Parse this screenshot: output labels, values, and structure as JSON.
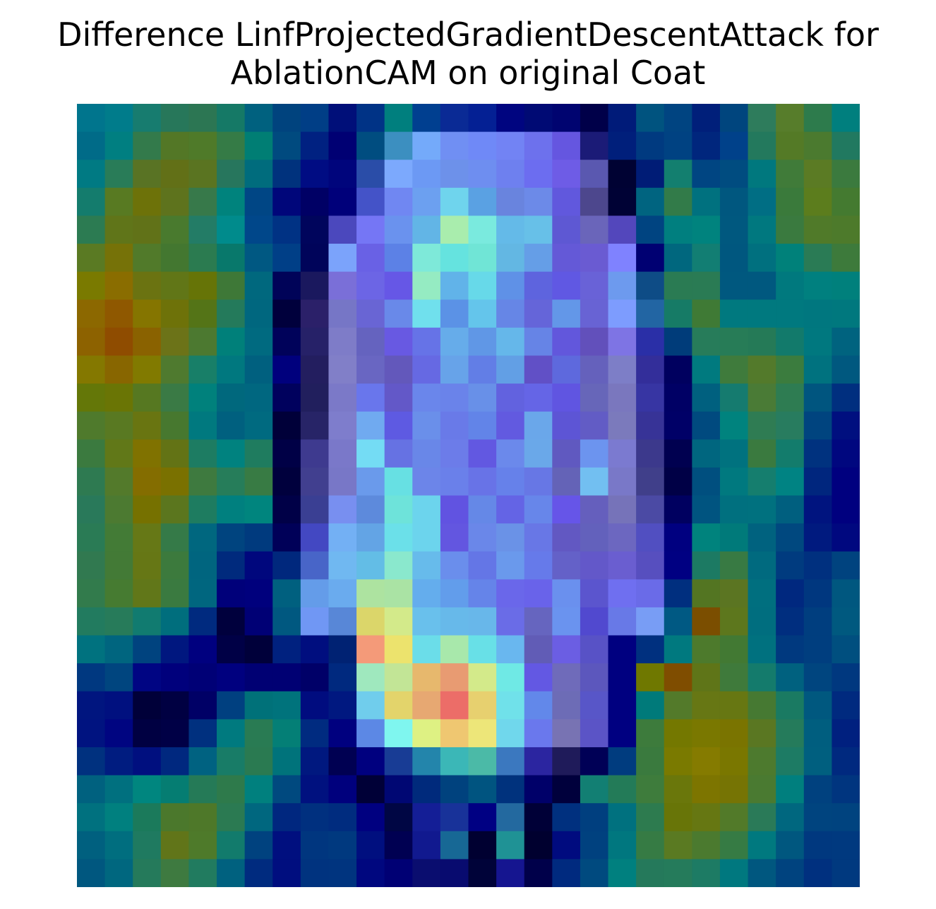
{
  "chart_data": {
    "type": "heatmap",
    "title": "Difference LinfProjectedGradientDescentAttack for",
    "subtitle": "AblationCAM on original Coat",
    "rows": 28,
    "cols": 28,
    "axes_visible": false,
    "grid": false,
    "colorbar": false,
    "colors": [
      [
        "#00758d",
        "#007c8b",
        "#177c6f",
        "#27775a",
        "#2c7653",
        "#157966",
        "#00617f",
        "#00437e",
        "#003e86",
        "#000f79",
        "#003386",
        "#007f7e",
        "#003f90",
        "#0a2a95",
        "#042094",
        "#000580",
        "#000a74",
        "#000470",
        "#000049",
        "#001b79",
        "#00537f",
        "#004481",
        "#001f7a",
        "#00457e",
        "#2e7c5c",
        "#577d2b",
        "#2d7b4c",
        "#007f7e"
      ],
      [
        "#006b88",
        "#007f81",
        "#337a4b",
        "#537726",
        "#4f7a29",
        "#357b46",
        "#007e74",
        "#004a7f",
        "#002181",
        "#000073",
        "#004d80",
        "#3c8fc0",
        "#74aafa",
        "#708ff3",
        "#6f89f7",
        "#7283f4",
        "#6d71ed",
        "#6556e0",
        "#1b1b77",
        "#001f7b",
        "#003a80",
        "#004282",
        "#00267d",
        "#00418a",
        "#23795d",
        "#547a26",
        "#4b7a2f",
        "#217960"
      ],
      [
        "#007a83",
        "#297c58",
        "#597324",
        "#627017",
        "#5a7421",
        "#27765d",
        "#006c7d",
        "#00327d",
        "#000c83",
        "#00057c",
        "#2a4da8",
        "#7ca9fd",
        "#6c99f4",
        "#6d91ea",
        "#6e8ef0",
        "#6e80ef",
        "#6c6df0",
        "#6e5ce6",
        "#5a58b0",
        "#000233",
        "#001c76",
        "#137f6f",
        "#004582",
        "#004c80",
        "#00787e",
        "#407b39",
        "#5b7b24",
        "#3b7a3e"
      ],
      [
        "#147c6d",
        "#587a22",
        "#6d7209",
        "#5e731d",
        "#37794a",
        "#00837d",
        "#004685",
        "#00067a",
        "#000065",
        "#00007a",
        "#4453c8",
        "#7087f2",
        "#6ca0f0",
        "#6fd4ed",
        "#5aa1e3",
        "#6984de",
        "#6c8ae8",
        "#6158dd",
        "#4d478d",
        "#000235",
        "#006480",
        "#327b49",
        "#00717f",
        "#00577f",
        "#006e84",
        "#3a7a3b",
        "#5c7d1d",
        "#447a30"
      ],
      [
        "#2c7b52",
        "#607519",
        "#617218",
        "#497a2e",
        "#237c66",
        "#008b8c",
        "#00478a",
        "#003284",
        "#00055c",
        "#4b48bd",
        "#7576f5",
        "#6a92ee",
        "#62b5e6",
        "#a9edad",
        "#7aeade",
        "#64bae8",
        "#67c0e8",
        "#5e58d3",
        "#6a65ba",
        "#5347bc",
        "#004481",
        "#007f7f",
        "#00837e",
        "#00587f",
        "#00787f",
        "#3a7a3f",
        "#507a29",
        "#4d7a2b"
      ],
      [
        "#5a7a23",
        "#767208",
        "#517a2a",
        "#437730",
        "#2b7b50",
        "#08786b",
        "#005882",
        "#003f87",
        "#00045a",
        "#7ba3fb",
        "#6961e5",
        "#5c81e6",
        "#7ee9d9",
        "#65e3df",
        "#70e5d6",
        "#63b7e3",
        "#659ee7",
        "#6459d7",
        "#6a5bd2",
        "#7f82ff",
        "#000072",
        "#00677e",
        "#127e73",
        "#00577f",
        "#00707f",
        "#00817a",
        "#2a7b55",
        "#3d7a3b"
      ],
      [
        "#7a7a00",
        "#8a6d00",
        "#6b7311",
        "#617617",
        "#667407",
        "#3e7837",
        "#00687e",
        "#000358",
        "#1a185e",
        "#7a6fd8",
        "#6c65e5",
        "#6657e6",
        "#95ebc2",
        "#61b3e9",
        "#67d9e9",
        "#5f91e7",
        "#5e64de",
        "#6058e3",
        "#6962d7",
        "#6d9aee",
        "#0e4c86",
        "#2a7b53",
        "#2a7b54",
        "#00587f",
        "#00587f",
        "#00797e",
        "#00807f",
        "#00807c"
      ],
      [
        "#8c6800",
        "#8f5800",
        "#857500",
        "#6e7209",
        "#547417",
        "#247a5b",
        "#00677f",
        "#00003c",
        "#2b2069",
        "#7676c6",
        "#6965d4",
        "#6989e9",
        "#70e0ed",
        "#5b92e6",
        "#64c5eb",
        "#6686e6",
        "#6565d9",
        "#6397e8",
        "#6863d4",
        "#7d9cfe",
        "#2265a3",
        "#167b66",
        "#3f7a35",
        "#00797f",
        "#00797f",
        "#00797f",
        "#00777f",
        "#00787e"
      ],
      [
        "#8d6200",
        "#8f4c00",
        "#8a6200",
        "#6c7318",
        "#4c7930",
        "#00807a",
        "#006a80",
        "#00025a",
        "#262168",
        "#7e7cc8",
        "#6563bf",
        "#6859e2",
        "#6673e7",
        "#66acea",
        "#6097e6",
        "#65b7ea",
        "#6684e6",
        "#6257dc",
        "#6250bb",
        "#7e74e4",
        "#2a2fa7",
        "#003c7a",
        "#277c5a",
        "#277c57",
        "#257a57",
        "#127a6b",
        "#00787f",
        "#00637f"
      ],
      [
        "#847800",
        "#886600",
        "#817a00",
        "#4f7a2f",
        "#187f68",
        "#00787f",
        "#00607f",
        "#00007d",
        "#231e5f",
        "#817fc8",
        "#6966c2",
        "#6358bb",
        "#6669e3",
        "#67a3e9",
        "#627ee6",
        "#629fe5",
        "#6150c6",
        "#5e69dd",
        "#6561bc",
        "#7d7ec7",
        "#332e9a",
        "#00005f",
        "#007a7f",
        "#3f7b3c",
        "#537a2b",
        "#3b7c3e",
        "#00727f",
        "#00587f"
      ],
      [
        "#647708",
        "#6a7505",
        "#567821",
        "#3a7a45",
        "#00817c",
        "#00687d",
        "#006780",
        "#00015d",
        "#211f5d",
        "#7b79c8",
        "#6976ec",
        "#6358c8",
        "#6a86eb",
        "#6a83ea",
        "#6890e8",
        "#6262df",
        "#6565e6",
        "#6055e1",
        "#6766b9",
        "#7a77be",
        "#3735a3",
        "#000065",
        "#00607f",
        "#157b6f",
        "#4a7b36",
        "#2e7c52",
        "#00557f",
        "#002f7f"
      ],
      [
        "#4f7a2c",
        "#597922",
        "#697511",
        "#47782f",
        "#00797f",
        "#00607f",
        "#006a80",
        "#000039",
        "#272467",
        "#7e7dcc",
        "#70aaf0",
        "#5e5ae2",
        "#6a8fea",
        "#697ae8",
        "#6284e8",
        "#625ae0",
        "#6aa7ea",
        "#5d55d5",
        "#625cc5",
        "#7b7abc",
        "#373397",
        "#000067",
        "#004a7f",
        "#00837e",
        "#2f7c53",
        "#287c5f",
        "#00447f",
        "#000f7f"
      ],
      [
        "#3b7a3f",
        "#617818",
        "#807200",
        "#637315",
        "#1d7c62",
        "#00827f",
        "#1f7c5f",
        "#000046",
        "#3e3a8f",
        "#7a78c9",
        "#74dcf4",
        "#6672e3",
        "#6987e8",
        "#6c7ce9",
        "#6258e1",
        "#6b89eb",
        "#6aa8e9",
        "#6059c0",
        "#6c94ef",
        "#7b7ad0",
        "#3c398c",
        "#000050",
        "#00667f",
        "#00727f",
        "#3a7a3f",
        "#137c6c",
        "#00327f",
        "#00077f"
      ],
      [
        "#2e7a51",
        "#537a2b",
        "#846d00",
        "#7a7100",
        "#3e7a3f",
        "#267d5a",
        "#387b44",
        "#00003d",
        "#413f8f",
        "#7877c7",
        "#6a9aeb",
        "#67e0e3",
        "#6c85e9",
        "#6a80ea",
        "#6873e7",
        "#6681ea",
        "#6777e5",
        "#6463b7",
        "#72bff1",
        "#7978c8",
        "#403f8a",
        "#000046",
        "#004f7f",
        "#00797f",
        "#157e6e",
        "#008383",
        "#00267e",
        "#00007f"
      ],
      [
        "#29795a",
        "#4c7a31",
        "#767100",
        "#5b761e",
        "#1e7c60",
        "#00807f",
        "#00857e",
        "#000047",
        "#3a3f93",
        "#788ff0",
        "#5d8adc",
        "#6ee3da",
        "#6cd4ed",
        "#6153e1",
        "#6588e7",
        "#6464e5",
        "#6786ea",
        "#6655e8",
        "#655fbd",
        "#7673b9",
        "#4b4aa4",
        "#000060",
        "#005480",
        "#00707f",
        "#00717f",
        "#005f7f",
        "#00147f",
        "#00007f"
      ],
      [
        "#2a7b55",
        "#437b36",
        "#667816",
        "#357a48",
        "#00677f",
        "#00447f",
        "#003a7e",
        "#000058",
        "#4348c2",
        "#73b0f4",
        "#63a4e5",
        "#6be0e9",
        "#6cd4ed",
        "#6356e0",
        "#6a87e9",
        "#6a92e7",
        "#6877e6",
        "#6258c2",
        "#6361bc",
        "#6c67c0",
        "#514fc1",
        "#000080",
        "#00837d",
        "#007a7a",
        "#00627f",
        "#00487f",
        "#001a7f",
        "#00087f"
      ],
      [
        "#317950",
        "#437a36",
        "#667715",
        "#3c7a3d",
        "#00657f",
        "#002a7d",
        "#00077d",
        "#00287d",
        "#4865c8",
        "#70b8f1",
        "#63bde6",
        "#8ae8cd",
        "#67bbeb",
        "#6a8eec",
        "#6476e6",
        "#6a99ec",
        "#667aea",
        "#6461c8",
        "#6358c9",
        "#6a5ed0",
        "#574fbf",
        "#000082",
        "#1c7a63",
        "#387a43",
        "#006a7f",
        "#003b7f",
        "#00307f",
        "#00437f"
      ],
      [
        "#327b4c",
        "#467b31",
        "#617719",
        "#3a7a40",
        "#00667f",
        "#00007a",
        "#00007d",
        "#00607f",
        "#649ce9",
        "#6aabee",
        "#ade3a0",
        "#aae3a4",
        "#64aded",
        "#629deb",
        "#6584e9",
        "#6a67ea",
        "#6963ea",
        "#6a90ee",
        "#5b55ce",
        "#6f6ff0",
        "#6a6be8",
        "#002f7f",
        "#537522",
        "#5b7522",
        "#006f7f",
        "#00287f",
        "#00377f",
        "#00577f"
      ],
      [
        "#227b5f",
        "#277b5a",
        "#117b70",
        "#006e7d",
        "#002a7f",
        "#00003d",
        "#000075",
        "#005880",
        "#7097f4",
        "#5887d7",
        "#dbd66a",
        "#d3ea8a",
        "#69c0ec",
        "#67b9ea",
        "#68b7ea",
        "#6a6ce7",
        "#6665bf",
        "#6a93ef",
        "#5149cf",
        "#6879e7",
        "#789df5",
        "#005983",
        "#7b4e00",
        "#5d771d",
        "#006e7f",
        "#002e7f",
        "#003e7f",
        "#00597f"
      ],
      [
        "#00727f",
        "#00657f",
        "#00437f",
        "#00177f",
        "#00007f",
        "#000046",
        "#00003a",
        "#00217f",
        "#000e7f",
        "#002273",
        "#f49a79",
        "#ece36d",
        "#6bdde9",
        "#a8e8ab",
        "#68e0e7",
        "#69b7ef",
        "#615cb6",
        "#6b5ee3",
        "#5852c6",
        "#000080",
        "#00307f",
        "#00797f",
        "#4d7a2c",
        "#427933",
        "#00717f",
        "#00397f",
        "#003e7f",
        "#004f7f"
      ],
      [
        "#003880",
        "#00457f",
        "#000583",
        "#00007c",
        "#000076",
        "#00007f",
        "#000073",
        "#000073",
        "#000068",
        "#00297f",
        "#9fe8be",
        "#c2e596",
        "#e7b86d",
        "#e89b72",
        "#d3ea8a",
        "#6fe9e5",
        "#6358e3",
        "#6f6bba",
        "#5c57bd",
        "#000080",
        "#6f7800",
        "#7f4d00",
        "#5f7518",
        "#3f7a3b",
        "#147b6c",
        "#00617f",
        "#00457f",
        "#00387f"
      ],
      [
        "#00157f",
        "#00107f",
        "#000039",
        "#000042",
        "#000066",
        "#004080",
        "#007179",
        "#00737c",
        "#000c7f",
        "#001880",
        "#70cdec",
        "#e3d46b",
        "#e7a872",
        "#ec6d68",
        "#e7d06f",
        "#70e1ea",
        "#6288ea",
        "#6d6cb6",
        "#5856c8",
        "#000080",
        "#007a7a",
        "#537a2a",
        "#677714",
        "#677712",
        "#467932",
        "#1a7a62",
        "#00587f",
        "#002a7f"
      ],
      [
        "#001380",
        "#000581",
        "#000042",
        "#000046",
        "#00307f",
        "#007a7f",
        "#297b53",
        "#047f76",
        "#002b80",
        "#00007f",
        "#5c88e5",
        "#7ff6ef",
        "#def183",
        "#efc771",
        "#ede679",
        "#70d7ec",
        "#6a78ed",
        "#7873b3",
        "#5b54c6",
        "#000081",
        "#3d7b3c",
        "#747800",
        "#7a7800",
        "#7a7400",
        "#5a7722",
        "#257b5b",
        "#005e7f",
        "#00207f"
      ],
      [
        "#00317f",
        "#001c80",
        "#000f7f",
        "#00287f",
        "#006281",
        "#187c67",
        "#2a7a51",
        "#00737b",
        "#00187f",
        "#000052",
        "#00007f",
        "#183c95",
        "#2385ab",
        "#3bb7b7",
        "#4bbaa7",
        "#3b78bf",
        "#2b25a0",
        "#1f1b5a",
        "#000056",
        "#003c7f",
        "#3a7a3e",
        "#7a7a00",
        "#857b00",
        "#7a7700",
        "#4d7a2e",
        "#1d7b64",
        "#005f7f",
        "#00297f"
      ],
      [
        "#00617f",
        "#00707f",
        "#00867f",
        "#057d72",
        "#257a57",
        "#2e7a4b",
        "#00807e",
        "#00497f",
        "#00117f",
        "#00007d",
        "#000037",
        "#000773",
        "#002a7c",
        "#00427e",
        "#005480",
        "#00327d",
        "#000069",
        "#00003c",
        "#127f73",
        "#237b58",
        "#3e7c3c",
        "#6a770b",
        "#7d7500",
        "#767404",
        "#4a7a31",
        "#007f7e",
        "#00417f",
        "#00357f"
      ],
      [
        "#00717f",
        "#00807f",
        "#1b7a5b",
        "#4b782c",
        "#4e7829",
        "#2b7a52",
        "#00677f",
        "#00277f",
        "#00307f",
        "#002c7f",
        "#000080",
        "#000644",
        "#141e96",
        "#183299",
        "#000083",
        "#23699f",
        "#000037",
        "#00307f",
        "#003f7f",
        "#00717f",
        "#2d7b4f",
        "#687508",
        "#667712",
        "#527a29",
        "#2a7a58",
        "#00677f",
        "#00447f",
        "#00437f"
      ],
      [
        "#00607f",
        "#006e7f",
        "#1f7a60",
        "#617519",
        "#4e7a2a",
        "#127b6c",
        "#00427f",
        "#000f7f",
        "#00367f",
        "#00397f",
        "#000f7f",
        "#000052",
        "#11198f",
        "#176895",
        "#000031",
        "#1f9295",
        "#00002f",
        "#000b7f",
        "#00417f",
        "#00777f",
        "#367b44",
        "#5a7a22",
        "#4b7a2f",
        "#367b44",
        "#00797f",
        "#00577f",
        "#00387f",
        "#00397f"
      ],
      [
        "#00577f",
        "#00677f",
        "#257a5b",
        "#3e7a40",
        "#217b5f",
        "#00617f",
        "#002b7f",
        "#000e7f",
        "#00337f",
        "#00347f",
        "#00077f",
        "#000074",
        "#0a0d6f",
        "#080b6f",
        "#000339",
        "#151590",
        "#00004a",
        "#002a7f",
        "#004a7f",
        "#00807f",
        "#25795b",
        "#257b5b",
        "#1d7b64",
        "#00787f",
        "#00577f",
        "#00437f",
        "#00307f",
        "#00397f"
      ]
    ]
  }
}
